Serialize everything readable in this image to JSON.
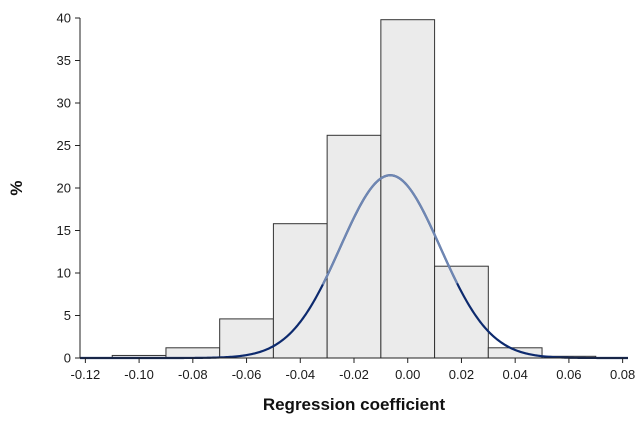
{
  "chart_data": {
    "type": "bar",
    "subtype": "histogram",
    "title": "",
    "xlabel": "Regression coefficient",
    "ylabel": "%",
    "xlim": [
      -0.122,
      0.082
    ],
    "ylim": [
      0,
      40
    ],
    "x_ticks": [
      "-0.12",
      "-0.10",
      "-0.08",
      "-0.06",
      "-0.04",
      "-0.02",
      "0.00",
      "0.02",
      "0.04",
      "0.06",
      "0.08"
    ],
    "y_ticks": [
      "0",
      "5",
      "10",
      "15",
      "20",
      "25",
      "30",
      "35",
      "40"
    ],
    "bins": [
      {
        "x0": -0.11,
        "x1": -0.09,
        "value": 0.3
      },
      {
        "x0": -0.09,
        "x1": -0.07,
        "value": 1.2
      },
      {
        "x0": -0.07,
        "x1": -0.05,
        "value": 4.6
      },
      {
        "x0": -0.05,
        "x1": -0.03,
        "value": 15.8
      },
      {
        "x0": -0.03,
        "x1": -0.01,
        "value": 26.2
      },
      {
        "x0": -0.01,
        "x1": 0.01,
        "value": 39.8
      },
      {
        "x0": 0.01,
        "x1": 0.03,
        "value": 10.8
      },
      {
        "x0": 0.03,
        "x1": 0.05,
        "value": 1.2
      },
      {
        "x0": 0.05,
        "x1": 0.07,
        "value": 0.2
      }
    ],
    "curve": {
      "type": "normal_density",
      "mean": -0.0065,
      "sd": 0.0186,
      "peak": 21.5
    },
    "grid": false,
    "colors": {
      "bar_fill": "#ebebeb",
      "bar_stroke": "#333333",
      "curve_outer": "#0d2a6e",
      "curve_inner": "#6f87b3"
    }
  }
}
